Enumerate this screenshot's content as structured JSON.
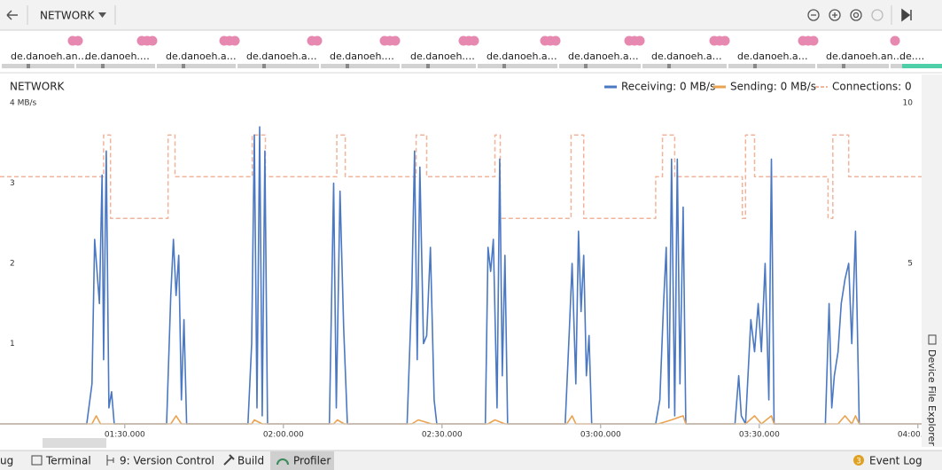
{
  "toolbar": {
    "profiler": "NETWORK"
  },
  "events": {
    "labels": [
      "de.danoeh.an…",
      "de.danoeh.…",
      "de.danoeh.a…",
      "de.danoeh.a…",
      "de.danoeh.…",
      "de.danoeh.…",
      "de.danoeh.a…",
      "de.danoeh.a…",
      "de.danoeh.a…",
      "de.danoeh.a…",
      "de.danoeh.an…",
      "de.…"
    ]
  },
  "chart_data": {
    "type": "line",
    "title": "NETWORK",
    "xlim": [
      66.4,
      240.7
    ],
    "xticks": [
      {
        "value": 90,
        "label": "01:30.000"
      },
      {
        "value": 120,
        "label": "02:00.000"
      },
      {
        "value": 150,
        "label": "02:30.000"
      },
      {
        "value": 180,
        "label": "03:00.000"
      },
      {
        "value": 210,
        "label": "03:30.000"
      },
      {
        "value": 240,
        "label": "04:00.000"
      }
    ],
    "ylim": [
      0,
      4
    ],
    "yticks": [
      1,
      2,
      3,
      {
        "value": 4,
        "label": "4 MB/s"
      }
    ],
    "y2lim": [
      0,
      10
    ],
    "y2ticks": [
      5,
      10
    ],
    "grid": false,
    "legend": "top-right",
    "series": [
      {
        "name": "Receiving: 0 MB/s",
        "color": "#4a78c2",
        "x": [
          66.4,
          82.8,
          83.8,
          84.3,
          85.2,
          85.7,
          86.0,
          86.5,
          87.0,
          87.5,
          88.0,
          97.9,
          98.7,
          99.2,
          99.7,
          100.2,
          100.7,
          101.2,
          101.7,
          113.3,
          114.0,
          114.5,
          115.0,
          115.5,
          116.0,
          116.5,
          117.0,
          128.7,
          129.5,
          130.0,
          130.7,
          131.4,
          132.1,
          143.4,
          144.3,
          144.8,
          145.3,
          145.8,
          146.5,
          147.1,
          147.8,
          148.5,
          149.0,
          158.2,
          158.7,
          159.2,
          159.7,
          160.4,
          160.9,
          161.4,
          161.9,
          162.4,
          173.3,
          174.1,
          174.6,
          175.3,
          175.8,
          176.3,
          176.8,
          177.3,
          177.8,
          178.3,
          190.4,
          191.2,
          191.9,
          192.4,
          192.9,
          193.4,
          194.0,
          194.5,
          195.0,
          195.6,
          196.1,
          205.4,
          206.1,
          206.6,
          207.4,
          208.4,
          209.1,
          209.8,
          210.4,
          211.1,
          211.8,
          212.3,
          212.8,
          222.5,
          223.2,
          223.7,
          224.2,
          224.9,
          225.5,
          226.2,
          226.9,
          227.5,
          228.2,
          228.9,
          240.7
        ],
        "values": [
          0,
          0,
          0.5,
          2.3,
          1.5,
          3.1,
          0.8,
          3.4,
          0.2,
          0.4,
          0,
          0,
          1.6,
          2.3,
          1.6,
          2.1,
          0.3,
          1.3,
          0,
          0,
          1.0,
          3.6,
          0.2,
          3.7,
          0.1,
          3.4,
          0,
          0,
          3.0,
          0.2,
          2.9,
          1.2,
          0,
          0,
          1.7,
          3.4,
          0.8,
          3.2,
          1.0,
          1.1,
          2.2,
          0.3,
          0,
          0,
          2.2,
          1.9,
          2.3,
          0.2,
          3.3,
          0.6,
          2.1,
          0,
          0,
          1.2,
          2.0,
          0.5,
          2.4,
          1.4,
          2.1,
          0.6,
          1.1,
          0,
          0,
          0.3,
          1.5,
          2.2,
          0.2,
          3.3,
          0.1,
          3.3,
          0.5,
          2.7,
          0,
          0,
          0.6,
          0.1,
          0,
          1.3,
          0.9,
          1.5,
          0.9,
          2.0,
          0.3,
          3.3,
          0,
          0,
          1.5,
          0.2,
          0.6,
          0.9,
          1.5,
          1.8,
          2.0,
          1.0,
          2.4,
          0,
          0
        ]
      },
      {
        "name": "Sending: 0 MB/s",
        "color": "#eba351",
        "x": [
          66.4,
          83.8,
          84.6,
          85.4,
          98.7,
          99.7,
          100.7,
          114.0,
          114.5,
          116.0,
          129.5,
          130.2,
          131.5,
          144.3,
          145.5,
          148.0,
          158.7,
          160.0,
          161.9,
          173.6,
          174.6,
          175.3,
          190.9,
          193.4,
          195.6,
          196.1,
          207.4,
          209.1,
          210.4,
          212.3,
          212.8,
          224.9,
          226.2,
          227.5,
          228.2,
          228.9,
          240.7
        ],
        "values": [
          0,
          0,
          0.1,
          0,
          0,
          0.1,
          0,
          0,
          0.05,
          0,
          0,
          0.05,
          0,
          0,
          0.05,
          0,
          0,
          0.05,
          0,
          0,
          0.1,
          0,
          0,
          0.05,
          0.1,
          0,
          0,
          0.1,
          0,
          0.1,
          0,
          0,
          0.1,
          0,
          0.1,
          0,
          0
        ]
      },
      {
        "name": "Connections: 0",
        "color": "#f0b49c",
        "axis": "y2",
        "dashed": true,
        "x": [
          66.4,
          86.0,
          86.0,
          87.3,
          87.3,
          98.2,
          98.2,
          99.5,
          99.5,
          114.1,
          114.1,
          116.6,
          116.6,
          130.1,
          130.1,
          131.7,
          131.7,
          145.1,
          145.1,
          147.1,
          147.1,
          160.0,
          160.0,
          161.0,
          161.0,
          174.4,
          174.4,
          176.8,
          176.8,
          190.4,
          190.4,
          191.7,
          191.7,
          194.0,
          194.0,
          206.8,
          206.8,
          207.4,
          207.4,
          209.1,
          209.1,
          223.0,
          223.0,
          223.9,
          223.9,
          226.9,
          226.9,
          240.7
        ],
        "values": [
          7.7,
          7.7,
          9.0,
          9.0,
          6.4,
          6.4,
          9.0,
          9.0,
          7.7,
          7.7,
          9.0,
          9.0,
          7.7,
          7.7,
          9.0,
          9.0,
          7.7,
          7.7,
          9.0,
          9.0,
          7.7,
          7.7,
          9.0,
          9.0,
          6.4,
          6.4,
          9.0,
          9.0,
          6.4,
          6.4,
          7.7,
          7.7,
          9.0,
          9.0,
          7.7,
          7.7,
          6.4,
          6.4,
          9.0,
          9.0,
          7.7,
          7.7,
          6.4,
          6.4,
          9.0,
          9.0,
          7.7,
          7.7
        ]
      }
    ]
  },
  "side_panel": {
    "label": "Device File Explorer"
  },
  "bottom_bar": {
    "tabs": [
      "ug",
      "Terminal",
      "9: Version Control",
      "Build",
      "Profiler"
    ],
    "event_log": "Event Log",
    "event_count": "3"
  }
}
